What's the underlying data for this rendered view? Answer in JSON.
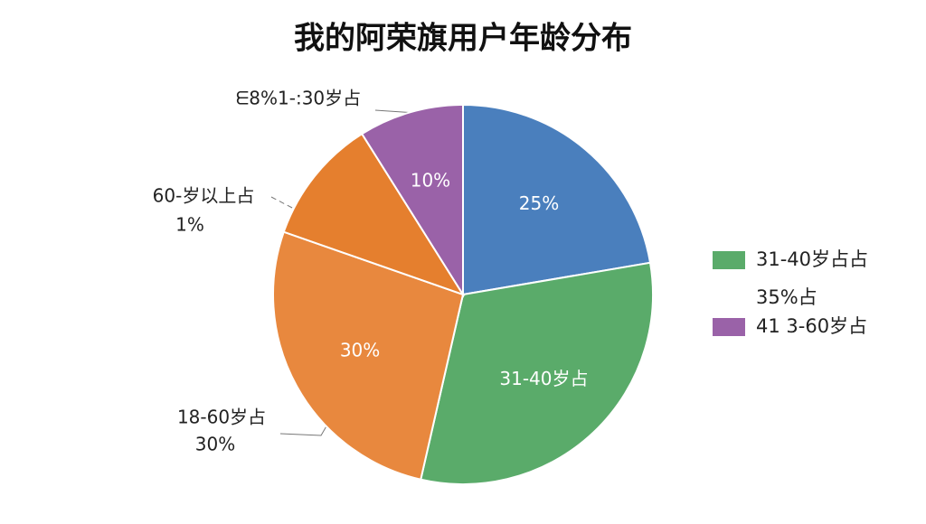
{
  "chart_data": {
    "type": "pie",
    "title": "我的阿荣旗用户年龄分布",
    "values": [
      25,
      35,
      30,
      12,
      10
    ],
    "value_labels": [
      "25%",
      "31-40岁占",
      "30%",
      null,
      "10%"
    ],
    "colors": [
      "#4a7fbd",
      "#5aab6a",
      "#e8883e",
      "#e57f2e",
      "#9a62a8"
    ],
    "annotations": [
      "ᗴ8%1-:30岁占",
      "60-岁以上占",
      "1%",
      "18-60岁占",
      "30%"
    ],
    "legend": [
      {
        "label": "31-40岁占占",
        "color": "#5aab6a"
      },
      {
        "label": "35%占"
      },
      {
        "label": "41 3-60岁占",
        "color": "#9a62a8"
      }
    ]
  }
}
